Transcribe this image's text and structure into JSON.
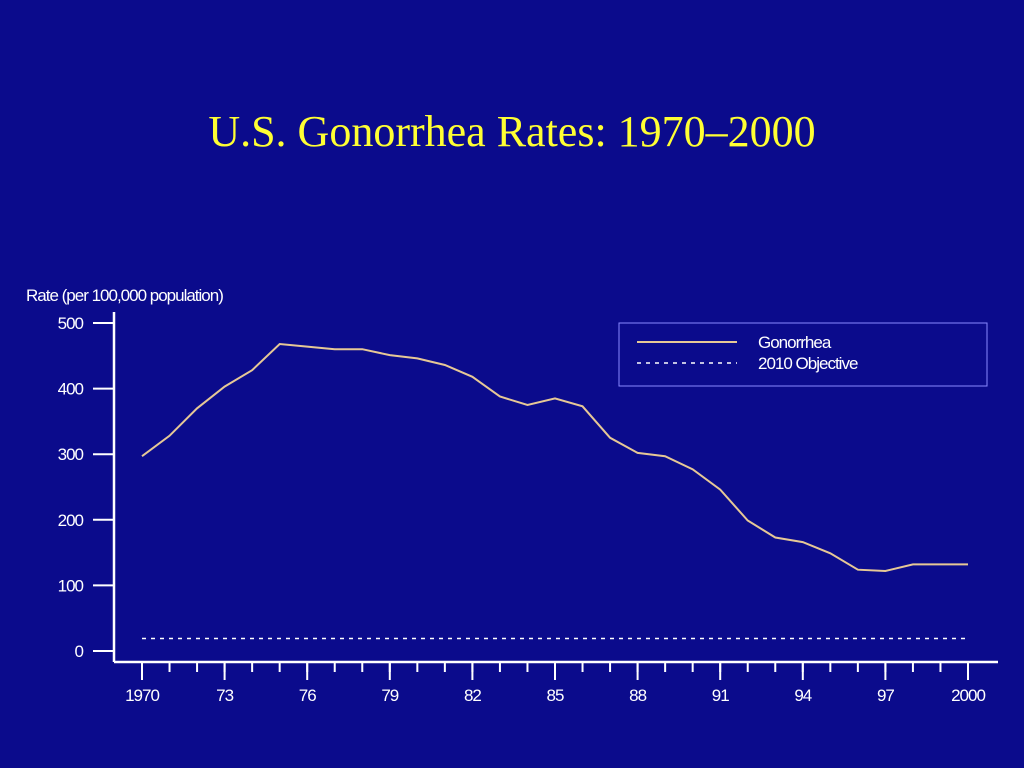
{
  "slide": {
    "title": "U.S. Gonorrhea Rates: 1970–2000"
  },
  "colors": {
    "background": "#0b0b8c",
    "title": "#ffff33",
    "axis": "#ffffff",
    "series": "#e6c896",
    "objective": "#ffffff"
  },
  "chart_data": {
    "type": "line",
    "ylabel": "Rate (per 100,000 population)",
    "ylim": [
      0,
      500
    ],
    "xlim": [
      1970,
      2000
    ],
    "yticks": [
      0,
      100,
      200,
      300,
      400,
      500
    ],
    "xtick_labels": [
      {
        "value": 1970,
        "label": "1970"
      },
      {
        "value": 1973,
        "label": "73"
      },
      {
        "value": 1976,
        "label": "76"
      },
      {
        "value": 1979,
        "label": "79"
      },
      {
        "value": 1982,
        "label": "82"
      },
      {
        "value": 1985,
        "label": "85"
      },
      {
        "value": 1988,
        "label": "88"
      },
      {
        "value": 1991,
        "label": "91"
      },
      {
        "value": 1994,
        "label": "94"
      },
      {
        "value": 1997,
        "label": "97"
      },
      {
        "value": 2000,
        "label": "2000"
      }
    ],
    "legend_position": "top-right",
    "series": [
      {
        "name": "Gonorrhea",
        "style": "solid",
        "x": [
          1970,
          1971,
          1972,
          1973,
          1974,
          1975,
          1976,
          1977,
          1978,
          1979,
          1980,
          1981,
          1982,
          1983,
          1984,
          1985,
          1986,
          1987,
          1988,
          1989,
          1990,
          1991,
          1992,
          1993,
          1994,
          1995,
          1996,
          1997,
          1998,
          1999,
          2000
        ],
        "values": [
          297,
          328,
          370,
          403,
          428,
          468,
          464,
          460,
          460,
          451,
          446,
          436,
          418,
          388,
          375,
          385,
          373,
          325,
          302,
          297,
          277,
          246,
          199,
          173,
          166,
          149,
          124,
          122,
          132,
          132,
          132
        ]
      },
      {
        "name": "2010 Objective",
        "style": "dotted",
        "x": [
          1970,
          2000
        ],
        "values": [
          19,
          19
        ]
      }
    ]
  }
}
